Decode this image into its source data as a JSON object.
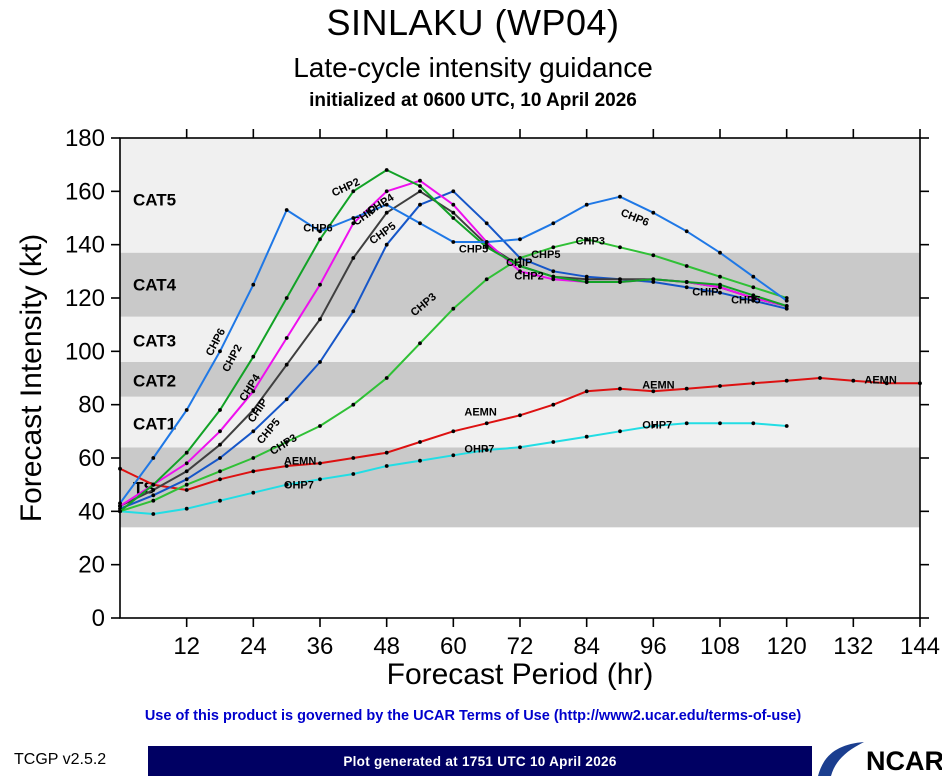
{
  "header": {
    "title": "SINLAKU (WP04)",
    "subtitle": "Late-cycle intensity guidance",
    "init_line": "initialized at 0600 UTC, 10 April 2026"
  },
  "footer": {
    "terms": "Use of this product is governed by the UCAR Terms of Use (http://www2.ucar.edu/terms-of-use)",
    "version": "TCGP v2.5.2",
    "generated": "Plot generated at 1751 UTC   10 April 2026",
    "logo": "NCAR"
  },
  "chart_data": {
    "type": "line",
    "title": "SINLAKU (WP04)",
    "subtitle": "Late-cycle intensity guidance",
    "annotation": "initialized at 0600 UTC, 10 April 2026",
    "xlabel": "Forecast Period (hr)",
    "ylabel": "Forecast Intensity (kt)",
    "xlim": [
      0,
      144
    ],
    "ylim": [
      0,
      180
    ],
    "xticks": [
      12,
      24,
      36,
      48,
      60,
      72,
      84,
      96,
      108,
      120,
      132,
      144
    ],
    "yticks": [
      0,
      20,
      40,
      60,
      80,
      100,
      120,
      140,
      160,
      180
    ],
    "grid": false,
    "legend_position": "inline-labels",
    "bands": [
      {
        "label": "",
        "from": 0,
        "to": 34,
        "color": "#ffffff",
        "label_color": "#ffffff",
        "label_y": 17
      },
      {
        "label": "TS",
        "from": 34,
        "to": 64,
        "color": "#c9c9c9",
        "label_color": "#ffffff",
        "label_y": 49
      },
      {
        "label": "CAT1",
        "from": 64,
        "to": 83,
        "color": "#f0f0f0",
        "label_color": "#c6c6c6",
        "label_y": 73
      },
      {
        "label": "CAT2",
        "from": 83,
        "to": 96,
        "color": "#c9c9c9",
        "label_color": "#ffffff",
        "label_y": 89
      },
      {
        "label": "CAT3",
        "from": 96,
        "to": 113,
        "color": "#f0f0f0",
        "label_color": "#c6c6c6",
        "label_y": 104
      },
      {
        "label": "CAT4",
        "from": 113,
        "to": 137,
        "color": "#c9c9c9",
        "label_color": "#ffffff",
        "label_y": 125
      },
      {
        "label": "CAT5",
        "from": 137,
        "to": 180,
        "color": "#f0f0f0",
        "label_color": "#c6c6c6",
        "label_y": 157
      }
    ],
    "series": [
      {
        "name": "OHP7",
        "color": "#22dde4",
        "x": [
          0,
          6,
          12,
          18,
          24,
          30,
          36,
          42,
          48,
          54,
          60,
          66,
          72,
          78,
          84,
          90,
          96,
          102,
          108,
          114,
          120
        ],
        "y": [
          40,
          39,
          41,
          44,
          47,
          50,
          52,
          54,
          57,
          59,
          61,
          63,
          64,
          66,
          68,
          70,
          72,
          73,
          73,
          73,
          72
        ]
      },
      {
        "name": "AEMN",
        "color": "#dd1111",
        "x": [
          0,
          6,
          12,
          18,
          24,
          30,
          36,
          42,
          48,
          54,
          60,
          66,
          72,
          78,
          84,
          90,
          96,
          102,
          108,
          114,
          120,
          126,
          132,
          138,
          144
        ],
        "y": [
          56,
          50,
          48,
          52,
          55,
          57,
          58,
          60,
          62,
          66,
          70,
          73,
          76,
          80,
          85,
          86,
          85,
          86,
          87,
          88,
          89,
          90,
          89,
          88,
          88
        ]
      },
      {
        "name": "CHP3",
        "color": "#30c036",
        "x": [
          0,
          6,
          12,
          18,
          24,
          30,
          36,
          42,
          48,
          54,
          60,
          66,
          72,
          78,
          84,
          90,
          96,
          102,
          108,
          114,
          120
        ],
        "y": [
          40,
          44,
          50,
          55,
          60,
          66,
          72,
          80,
          90,
          103,
          116,
          127,
          135,
          139,
          142,
          139,
          136,
          132,
          128,
          124,
          120
        ]
      },
      {
        "name": "CHP5",
        "color": "#1656c8",
        "x": [
          0,
          6,
          12,
          18,
          24,
          30,
          36,
          42,
          48,
          54,
          60,
          66,
          72,
          78,
          84,
          90,
          96,
          102,
          108,
          114,
          120
        ],
        "y": [
          41,
          46,
          52,
          60,
          70,
          82,
          96,
          115,
          140,
          155,
          160,
          148,
          135,
          130,
          128,
          127,
          126,
          124,
          122,
          119,
          116
        ]
      },
      {
        "name": "CHIP",
        "color": "#3f3f3f",
        "x": [
          0,
          6,
          12,
          18,
          24,
          30,
          36,
          42,
          48,
          54,
          60,
          66,
          72,
          78,
          84,
          90,
          96,
          102,
          108,
          114,
          120
        ],
        "y": [
          42,
          48,
          55,
          65,
          78,
          95,
          112,
          135,
          152,
          160,
          152,
          140,
          132,
          128,
          127,
          127,
          127,
          126,
          124,
          120,
          117
        ]
      },
      {
        "name": "CHP4",
        "color": "#ee10ee",
        "x": [
          0,
          6,
          12,
          18,
          24,
          30,
          36,
          42,
          48,
          54,
          60,
          66,
          72,
          78,
          84,
          90,
          96,
          102,
          108,
          114,
          120
        ],
        "y": [
          42,
          50,
          58,
          70,
          85,
          105,
          125,
          148,
          160,
          164,
          155,
          141,
          130,
          127,
          126,
          126,
          127,
          126,
          124,
          120,
          117
        ]
      },
      {
        "name": "CHP2",
        "color": "#12a226",
        "x": [
          0,
          6,
          12,
          18,
          24,
          30,
          36,
          42,
          48,
          54,
          60,
          66,
          72,
          78,
          84,
          90,
          96,
          102,
          108,
          114,
          120
        ],
        "y": [
          40,
          50,
          62,
          78,
          98,
          120,
          142,
          160,
          168,
          162,
          150,
          139,
          132,
          128,
          126,
          126,
          127,
          126,
          125,
          121,
          117
        ]
      },
      {
        "name": "CHP6",
        "color": "#1f78e6",
        "x": [
          0,
          6,
          12,
          18,
          24,
          30,
          36,
          42,
          48,
          54,
          60,
          66,
          72,
          78,
          84,
          90,
          96,
          102,
          108,
          114,
          120
        ],
        "y": [
          43,
          60,
          78,
          100,
          125,
          153,
          145,
          150,
          155,
          148,
          141,
          141,
          142,
          148,
          155,
          158,
          152,
          145,
          137,
          128,
          119
        ]
      }
    ],
    "labels": [
      {
        "text": "CHP6",
        "x": 16.5,
        "y": 98,
        "r": -62
      },
      {
        "text": "CHP2",
        "x": 19.5,
        "y": 92,
        "r": -62
      },
      {
        "text": "CHP4",
        "x": 22.5,
        "y": 81,
        "r": -58
      },
      {
        "text": "CHIP",
        "x": 24,
        "y": 73,
        "r": -56
      },
      {
        "text": "CHP5",
        "x": 25.5,
        "y": 65,
        "r": -50
      },
      {
        "text": "CHP3",
        "x": 27.5,
        "y": 61,
        "r": -32
      },
      {
        "text": "AEMN",
        "x": 29.5,
        "y": 57.5,
        "r": 0
      },
      {
        "text": "OHP7",
        "x": 29.5,
        "y": 48.5,
        "r": 0
      },
      {
        "text": "CHP6",
        "x": 33,
        "y": 145,
        "r": 0
      },
      {
        "text": "CHP2",
        "x": 38.5,
        "y": 158,
        "r": -25
      },
      {
        "text": "CHIP",
        "x": 42.5,
        "y": 147,
        "r": -35
      },
      {
        "text": "CHP4",
        "x": 45,
        "y": 151,
        "r": -33
      },
      {
        "text": "CHP5",
        "x": 45.5,
        "y": 140,
        "r": -36
      },
      {
        "text": "CHP3",
        "x": 53,
        "y": 113,
        "r": -40
      },
      {
        "text": "CHP5",
        "x": 61,
        "y": 137,
        "r": 0
      },
      {
        "text": "CHIP",
        "x": 69.5,
        "y": 132,
        "r": 0
      },
      {
        "text": "CHP5",
        "x": 74,
        "y": 135,
        "r": 0
      },
      {
        "text": "CHP2",
        "x": 71,
        "y": 127,
        "r": 0
      },
      {
        "text": "CHP3",
        "x": 82,
        "y": 140,
        "r": 0
      },
      {
        "text": "CHP6",
        "x": 90,
        "y": 151,
        "r": 22
      },
      {
        "text": "AEMN",
        "x": 62,
        "y": 76,
        "r": 0
      },
      {
        "text": "OHP7",
        "x": 62,
        "y": 62,
        "r": 0
      },
      {
        "text": "AEMN",
        "x": 94,
        "y": 86,
        "r": 0
      },
      {
        "text": "OHP7",
        "x": 94,
        "y": 71,
        "r": 0
      },
      {
        "text": "CHIP",
        "x": 103,
        "y": 121,
        "r": 0
      },
      {
        "text": "CHP5",
        "x": 110,
        "y": 118,
        "r": 0
      },
      {
        "text": "AEMN",
        "x": 134,
        "y": 88,
        "r": 0
      }
    ]
  }
}
